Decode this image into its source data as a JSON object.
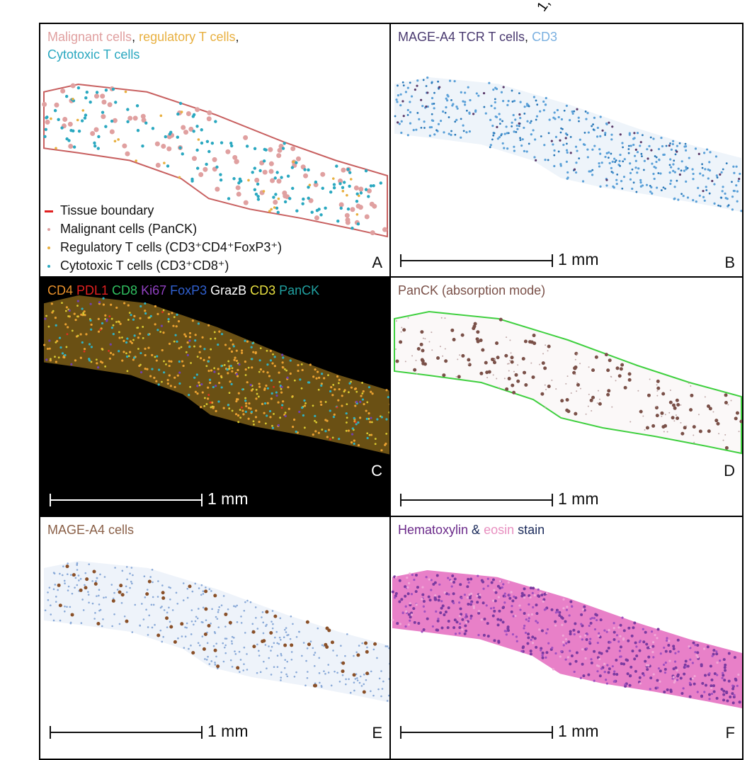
{
  "fragment": "1,",
  "panels": [
    {
      "letter": "A",
      "background": "#ffffff",
      "title": [
        [
          {
            "text": "Malignant cells",
            "color": "#e0a0a0"
          },
          {
            "text": ", ",
            "color": "#222222"
          },
          {
            "text": "regulatory T cells",
            "color": "#e8b040"
          },
          {
            "text": ",",
            "color": "#222222"
          }
        ],
        [
          {
            "text": "Cytotoxic T cells",
            "color": "#2aa8c0"
          }
        ]
      ],
      "legend": [
        {
          "label": "Tissue boundary",
          "color": "#e02020"
        },
        {
          "label": "Malignant cells (PanCK)",
          "color": "#e0a0a0"
        },
        {
          "label": "Regulatory T cells (CD3⁺CD4⁺FoxP3⁺)",
          "color": "#e8b040"
        },
        {
          "label": "Cytotoxic T cells (CD3⁺CD8⁺)",
          "color": "#2aa8c0"
        }
      ]
    },
    {
      "letter": "B",
      "background": "#ffffff",
      "title": [
        [
          {
            "text": "MAGE-A4 TCR T cells",
            "color": "#4a3a70"
          },
          {
            "text": ", ",
            "color": "#222222"
          },
          {
            "text": "CD3",
            "color": "#7ab0e0"
          }
        ]
      ],
      "scale": "1 mm"
    },
    {
      "letter": "C",
      "background": "#000000",
      "title": [
        [
          {
            "text": "CD4",
            "color": "#e8902a"
          },
          {
            "text": " PDL1",
            "color": "#e02020"
          },
          {
            "text": " CD8",
            "color": "#30c060"
          },
          {
            "text": " Ki67",
            "color": "#9040c0"
          },
          {
            "text": " FoxP3",
            "color": "#3060d0"
          },
          {
            "text": " GrazB",
            "color": "#ffffff"
          },
          {
            "text": " CD3",
            "color": "#e8e040"
          },
          {
            "text": " PanCK",
            "color": "#20a0a0"
          }
        ]
      ],
      "scale": "1 mm"
    },
    {
      "letter": "D",
      "background": "#ffffff",
      "title": [
        [
          {
            "text": "PanCK (absorption mode)",
            "color": "#7a5048"
          }
        ]
      ],
      "scale": "1 mm"
    },
    {
      "letter": "E",
      "background": "#ffffff",
      "title": [
        [
          {
            "text": "MAGE-A4 cells",
            "color": "#8a6048"
          }
        ]
      ],
      "scale": "1 mm"
    },
    {
      "letter": "F",
      "background": "#ffffff",
      "title": [
        [
          {
            "text": "Hematoxylin",
            "color": "#6b2a8a"
          },
          {
            "text": " & ",
            "color": "#1a2a5a"
          },
          {
            "text": "eosin",
            "color": "#e890c0"
          },
          {
            "text": " stain",
            "color": "#1a2a5a"
          }
        ]
      ],
      "scale": "1 mm"
    }
  ]
}
